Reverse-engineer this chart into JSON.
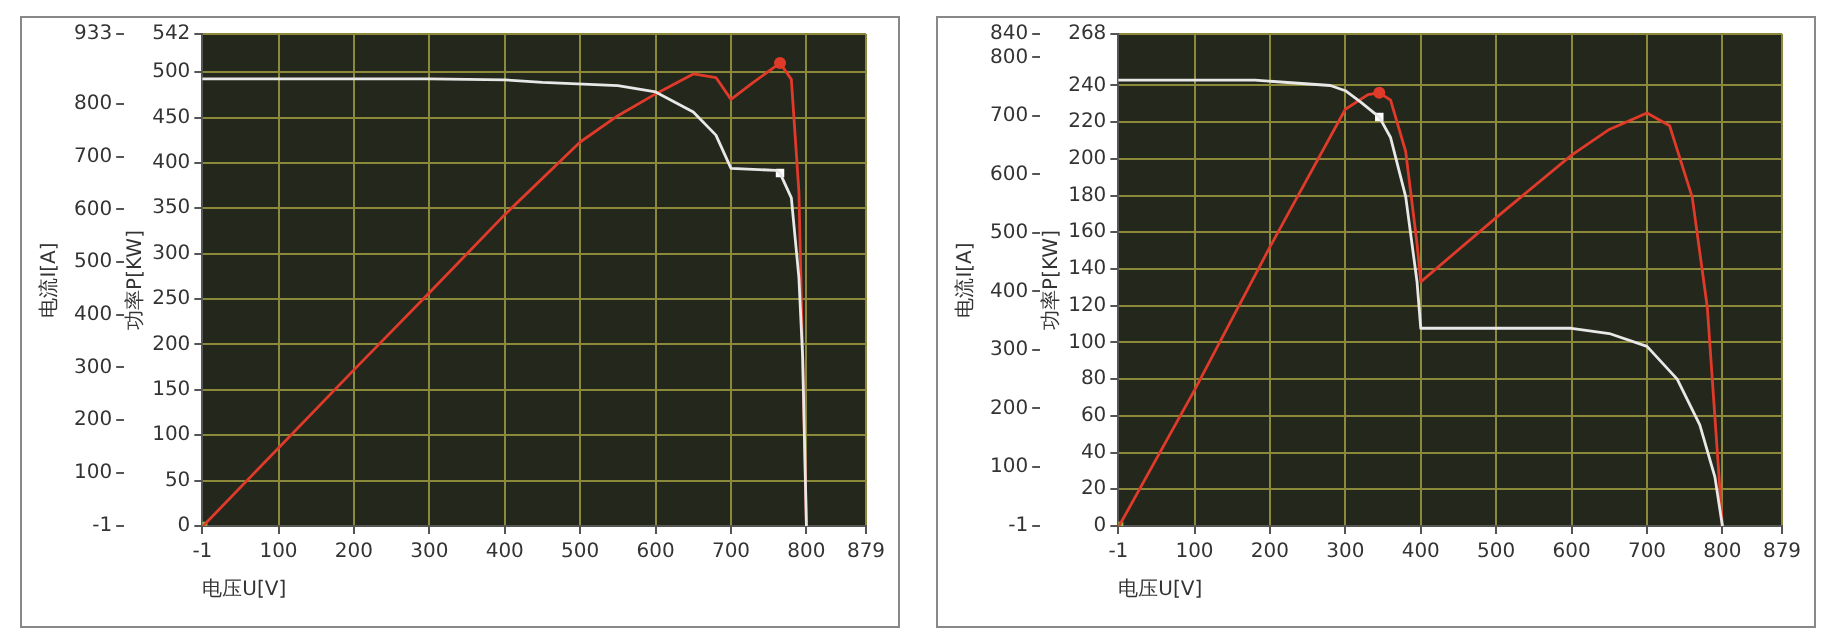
{
  "chart_data": [
    {
      "type": "line",
      "xlabel": "电压U[V]",
      "ylabel": "电流I[A]",
      "y2label": "功率P[KW]",
      "xlim": [
        -1,
        879
      ],
      "xticks": [
        -1,
        100,
        200,
        300,
        400,
        500,
        600,
        700,
        800,
        879
      ],
      "ylim": [
        -1,
        933
      ],
      "yticks": [
        -1,
        100,
        200,
        300,
        400,
        500,
        600,
        700,
        800,
        933
      ],
      "y2lim": [
        0,
        542
      ],
      "y2ticks": [
        0,
        50,
        100,
        150,
        200,
        250,
        300,
        350,
        400,
        450,
        500,
        542
      ],
      "grid": true,
      "legend": false,
      "series": [
        {
          "type": "line",
          "color": "#e8e8e8",
          "marker": "none",
          "x": [
            -1,
            100,
            200,
            300,
            400,
            450,
            550,
            600,
            650,
            680,
            700,
            760,
            765,
            780,
            790,
            795,
            800
          ],
          "values": [
            848,
            848,
            848,
            848,
            846,
            841,
            835,
            823,
            785,
            741,
            678,
            674,
            669,
            622,
            471,
            320,
            -1
          ]
        },
        {
          "type": "line",
          "color": "#e03a2a",
          "marker": "none",
          "axis": "y2",
          "x": [
            0,
            100,
            200,
            300,
            400,
            500,
            550,
            600,
            650,
            680,
            700,
            730,
            765,
            780,
            790,
            795,
            800
          ],
          "values": [
            0,
            86,
            172,
            257,
            343,
            423,
            452,
            476,
            498,
            494,
            470,
            489,
            510,
            492,
            369,
            186,
            0
          ]
        },
        {
          "type": "scatter",
          "color": "#e03a2a",
          "marker": "circle",
          "axis": "y2",
          "x": [
            765
          ],
          "values": [
            510
          ]
        },
        {
          "type": "scatter",
          "color": "#ffffff",
          "marker": "square",
          "x": [
            765
          ],
          "values": [
            669
          ]
        },
        {
          "type": "scatter",
          "color": "#8ac443",
          "marker": "square",
          "axis": "y2",
          "x": [
            0
          ],
          "values": [
            0
          ]
        }
      ]
    },
    {
      "type": "line",
      "xlabel": "电压U[V]",
      "ylabel": "电流I[A]",
      "y2label": "功率P[KW]",
      "xlim": [
        -1,
        879
      ],
      "xticks": [
        -1,
        100,
        200,
        300,
        400,
        500,
        600,
        700,
        800,
        879
      ],
      "ylim": [
        -1,
        840
      ],
      "yticks": [
        -1,
        100,
        200,
        300,
        400,
        500,
        600,
        700,
        800,
        840
      ],
      "y2lim": [
        0,
        268
      ],
      "y2ticks": [
        0,
        20,
        40,
        60,
        80,
        100,
        120,
        140,
        160,
        180,
        200,
        220,
        240,
        268
      ],
      "grid": true,
      "legend": false,
      "series": [
        {
          "type": "line",
          "color": "#e8e8e8",
          "marker": "none",
          "x": [
            -1,
            180,
            280,
            300,
            320,
            345,
            360,
            380,
            395,
            400,
            600,
            650,
            700,
            740,
            770,
            790,
            800
          ],
          "values": [
            761,
            761,
            752,
            743,
            724,
            698,
            663,
            562,
            417,
            337,
            337,
            328,
            306,
            250,
            172,
            83,
            -1
          ]
        },
        {
          "type": "line",
          "color": "#e03a2a",
          "marker": "none",
          "axis": "y2",
          "x": [
            0,
            100,
            200,
            300,
            330,
            345,
            360,
            380,
            395,
            400,
            500,
            600,
            650,
            700,
            730,
            760,
            780,
            800
          ],
          "values": [
            0,
            74,
            152,
            227,
            235,
            236,
            232,
            204,
            154,
            133,
            168,
            202,
            216,
            225,
            218,
            179,
            119,
            0
          ]
        },
        {
          "type": "scatter",
          "color": "#e03a2a",
          "marker": "circle",
          "axis": "y2",
          "x": [
            345
          ],
          "values": [
            236
          ]
        },
        {
          "type": "scatter",
          "color": "#ffffff",
          "marker": "square",
          "x": [
            345
          ],
          "values": [
            698
          ]
        },
        {
          "type": "scatter",
          "color": "#8ac443",
          "marker": "square",
          "axis": "y2",
          "x": [
            0
          ],
          "values": [
            0
          ]
        }
      ]
    }
  ]
}
